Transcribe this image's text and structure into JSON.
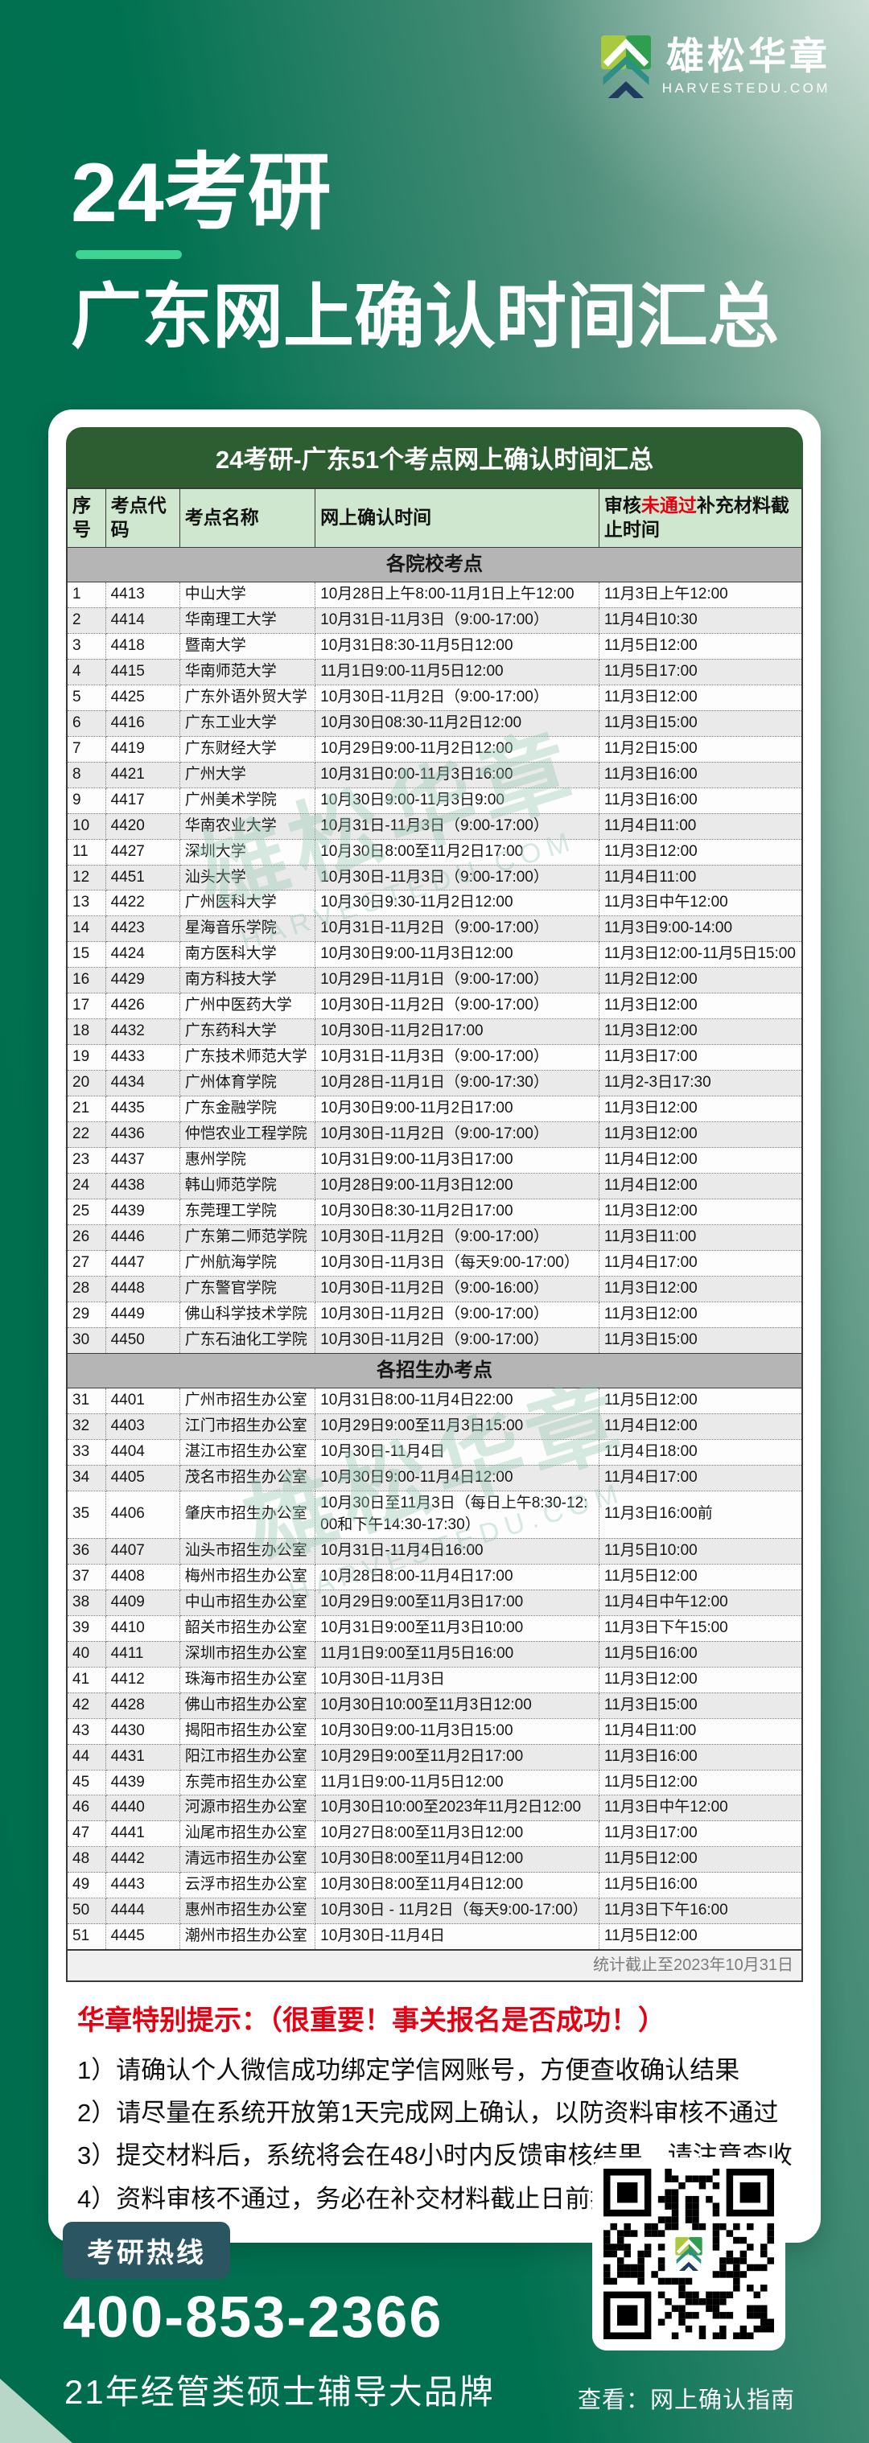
{
  "header": {
    "logo_text": "雄松华章",
    "logo_sub": "HARVESTEDU.COM",
    "title_line1": "24考研",
    "title_line2": "广东网上确认时间汇总"
  },
  "watermark": {
    "text": "雄松华章",
    "sub": "HARVESTEDU.COM"
  },
  "table": {
    "title": "24考研-广东51个考点网上确认时间汇总",
    "columns": [
      "序号",
      "考点代码",
      "考点名称",
      "网上确认时间"
    ],
    "col5": {
      "pre": "审核",
      "red": "未通过",
      "post": "补充材料截止时间"
    },
    "stats_note": "统计截止至2023年10月31日",
    "sections": [
      {
        "header": "各院校考点",
        "rows": [
          [
            "1",
            "4413",
            "中山大学",
            "10月28日上午8:00-11月1日上午12:00",
            "11月3日上午12:00"
          ],
          [
            "2",
            "4414",
            "华南理工大学",
            "10月31日-11月3日（9:00-17:00）",
            "11月4日10:30"
          ],
          [
            "3",
            "4418",
            "暨南大学",
            "10月31日8:30-11月5日12:00",
            "11月5日12:00"
          ],
          [
            "4",
            "4415",
            "华南师范大学",
            "11月1日9:00-11月5日12:00",
            "11月5日17:00"
          ],
          [
            "5",
            "4425",
            "广东外语外贸大学",
            "10月30日-11月2日（9:00-17:00）",
            "11月3日12:00"
          ],
          [
            "6",
            "4416",
            "广东工业大学",
            "10月30日08:30-11月2日12:00",
            "11月3日15:00"
          ],
          [
            "7",
            "4419",
            "广东财经大学",
            "10月29日9:00-11月2日12:00",
            "11月2日15:00"
          ],
          [
            "8",
            "4421",
            "广州大学",
            "10月31日0:00-11月3日16:00",
            "11月3日16:00"
          ],
          [
            "9",
            "4417",
            "广州美术学院",
            "10月30日9:00-11月3日9:00",
            "11月3日16:00"
          ],
          [
            "10",
            "4420",
            "华南农业大学",
            "10月31日-11月3日（9:00-17:00）",
            "11月4日11:00"
          ],
          [
            "11",
            "4427",
            "深圳大学",
            "10月30日8:00至11月2日17:00",
            "11月3日12:00"
          ],
          [
            "12",
            "4451",
            "汕头大学",
            "10月30日-11月3日（9:00-17:00）",
            "11月4日11:00"
          ],
          [
            "13",
            "4422",
            "广州医科大学",
            "10月30日9:30-11月2日12:00",
            "11月3日中午12:00"
          ],
          [
            "14",
            "4423",
            "星海音乐学院",
            "10月31日-11月2日（9:00-17:00）",
            "11月3日9:00-14:00"
          ],
          [
            "15",
            "4424",
            "南方医科大学",
            "10月30日9:00-11月3日12:00",
            "11月3日12:00-11月5日15:00"
          ],
          [
            "16",
            "4429",
            "南方科技大学",
            "10月29日-11月1日（9:00-17:00）",
            "11月2日12:00"
          ],
          [
            "17",
            "4426",
            "广州中医药大学",
            "10月30日-11月2日（9:00-17:00）",
            "11月3日12:00"
          ],
          [
            "18",
            "4432",
            "广东药科大学",
            "10月30日-11月2日17:00",
            "11月3日12:00"
          ],
          [
            "19",
            "4433",
            "广东技术师范大学",
            "10月31日-11月3日（9:00-17:00）",
            "11月3日17:00"
          ],
          [
            "20",
            "4434",
            "广州体育学院",
            "10月28日-11月1日（9:00-17:30）",
            "11月2-3日17:30"
          ],
          [
            "21",
            "4435",
            "广东金融学院",
            "10月30日9:00-11月2日17:00",
            "11月3日12:00"
          ],
          [
            "22",
            "4436",
            "仲恺农业工程学院",
            "10月30日-11月2日（9:00-17:00）",
            "11月3日12:00"
          ],
          [
            "23",
            "4437",
            "惠州学院",
            "10月31日9:00-11月3日17:00",
            "11月4日12:00"
          ],
          [
            "24",
            "4438",
            "韩山师范学院",
            "10月28日9:00-11月3日12:00",
            "11月4日12:00"
          ],
          [
            "25",
            "4439",
            "东莞理工学院",
            "10月30日8:30-11月2日17:00",
            "11月3日12:00"
          ],
          [
            "26",
            "4446",
            "广东第二师范学院",
            "10月30日-11月2日（9:00-17:00）",
            "11月3日11:00"
          ],
          [
            "27",
            "4447",
            "广州航海学院",
            "10月30日-11月3日（每天9:00-17:00）",
            "11月4日17:00"
          ],
          [
            "28",
            "4448",
            "广东警官学院",
            "10月30日-11月2日（9:00-16:00）",
            "11月3日12:00"
          ],
          [
            "29",
            "4449",
            "佛山科学技术学院",
            "10月30日-11月2日（9:00-17:00）",
            "11月3日12:00"
          ],
          [
            "30",
            "4450",
            "广东石油化工学院",
            "10月30日-11月2日（9:00-17:00）",
            "11月3日15:00"
          ]
        ]
      },
      {
        "header": "各招生办考点",
        "rows": [
          [
            "31",
            "4401",
            "广州市招生办公室",
            "10月31日8:00-11月4日22:00",
            "11月5日12:00"
          ],
          [
            "32",
            "4403",
            "江门市招生办公室",
            "10月29日9:00至11月3日15:00",
            "11月4日12:00"
          ],
          [
            "33",
            "4404",
            "湛江市招生办公室",
            "10月30日-11月4日",
            "11月4日18:00"
          ],
          [
            "34",
            "4405",
            "茂名市招生办公室",
            "10月30日9:00-11月4日12:00",
            "11月4日17:00"
          ],
          [
            "35",
            "4406",
            "肇庆市招生办公室",
            "10月30日至11月3日（每日上午8:30-12:00和下午14:30-17:30）",
            "11月3日16:00前"
          ],
          [
            "36",
            "4407",
            "汕头市招生办公室",
            "10月31日-11月4日16:00",
            "11月5日10:00"
          ],
          [
            "37",
            "4408",
            "梅州市招生办公室",
            "10月28日8:00-11月4日17:00",
            "11月5日12:00"
          ],
          [
            "38",
            "4409",
            "中山市招生办公室",
            "10月29日9:00至11月3日17:00",
            "11月4日中午12:00"
          ],
          [
            "39",
            "4410",
            "韶关市招生办公室",
            "10月31日9:00至11月3日10:00",
            "11月3日下午15:00"
          ],
          [
            "40",
            "4411",
            "深圳市招生办公室",
            "11月1日9:00至11月5日16:00",
            "11月5日16:00"
          ],
          [
            "41",
            "4412",
            "珠海市招生办公室",
            "10月30日-11月3日",
            "11月3日12:00"
          ],
          [
            "42",
            "4428",
            "佛山市招生办公室",
            "10月30日10:00至11月3日12:00",
            "11月3日15:00"
          ],
          [
            "43",
            "4430",
            "揭阳市招生办公室",
            "10月30日9:00-11月3日15:00",
            "11月4日11:00"
          ],
          [
            "44",
            "4431",
            "阳江市招生办公室",
            "10月29日9:00至11月2日17:00",
            "11月3日16:00"
          ],
          [
            "45",
            "4439",
            "东莞市招生办公室",
            "11月1日9:00-11月5日12:00",
            "11月5日12:00"
          ],
          [
            "46",
            "4440",
            "河源市招生办公室",
            "10月30日10:00至2023年11月2日12:00",
            "11月3日中午12:00"
          ],
          [
            "47",
            "4441",
            "汕尾市招生办公室",
            "10月27日8:00至11月3日12:00",
            "11月3日17:00"
          ],
          [
            "48",
            "4442",
            "清远市招生办公室",
            "10月30日8:00至11月4日12:00",
            "11月5日12:00"
          ],
          [
            "49",
            "4443",
            "云浮市招生办公室",
            "10月30日8:00至11月4日12:00",
            "11月5日16:00"
          ],
          [
            "50",
            "4444",
            "惠州市招生办公室",
            "10月30日 - 11月2日（每天9:00-17:00）",
            "11月3日下午16:00"
          ],
          [
            "51",
            "4445",
            "潮州市招生办公室",
            "10月30日-11月4日",
            "11月5日12:00"
          ]
        ]
      }
    ]
  },
  "notice": {
    "title": "华章特别提示：（很重要！事关报名是否成功！）",
    "items": [
      "1）请确认个人微信成功绑定学信网账号，方便查收确认结果",
      "2）请尽量在系统开放第1天完成网上确认，以防资料审核不通过",
      "3）提交材料后，系统将会在48小时内反馈审核结果，请注意查收",
      "4）资料审核不通过，务必在补交材料截止日前按要求补交材料"
    ]
  },
  "footer": {
    "hotline_label": "考研热线",
    "phone": "400-853-2366",
    "brand_line": "21年经管类硕士辅导大品牌",
    "qr_caption": "查看：网上确认指南"
  },
  "colors": {
    "bg_green": "#007150",
    "table_header_green": "#2d5e32",
    "column_header_green": "#cee7ce",
    "section_gray": "#b5b5b5",
    "alert_red": "#e60012",
    "accent_green": "#3ed492"
  }
}
